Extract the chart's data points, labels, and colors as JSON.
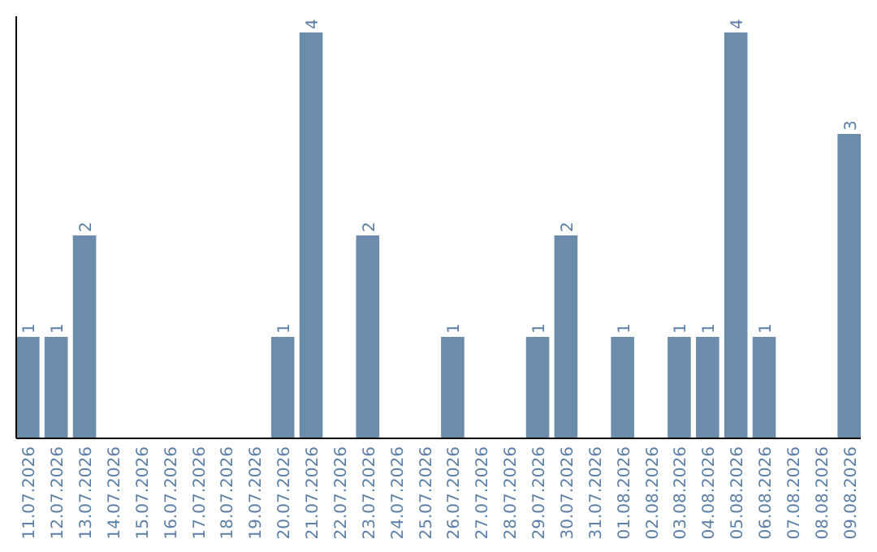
{
  "chart_data": {
    "type": "bar",
    "categories": [
      "11.07.2026",
      "12.07.2026",
      "13.07.2026",
      "14.07.2026",
      "15.07.2026",
      "16.07.2026",
      "17.07.2026",
      "18.07.2026",
      "19.07.2026",
      "20.07.2026",
      "21.07.2026",
      "22.07.2026",
      "23.07.2026",
      "24.07.2026",
      "25.07.2026",
      "26.07.2026",
      "27.07.2026",
      "28.07.2026",
      "29.07.2026",
      "30.07.2026",
      "31.07.2026",
      "01.08.2026",
      "02.08.2026",
      "03.08.2026",
      "04.08.2026",
      "05.08.2026",
      "06.08.2026",
      "07.08.2026",
      "08.08.2026",
      "09.08.2026"
    ],
    "values": [
      1,
      1,
      2,
      0,
      0,
      0,
      0,
      0,
      0,
      1,
      4,
      0,
      2,
      0,
      0,
      1,
      0,
      0,
      1,
      2,
      0,
      1,
      0,
      1,
      1,
      4,
      1,
      0,
      0,
      3
    ],
    "value_labels": [
      "1",
      "1",
      "2",
      null,
      null,
      null,
      null,
      null,
      null,
      "1",
      "4",
      null,
      "2",
      null,
      null,
      "1",
      null,
      null,
      "1",
      "2",
      null,
      "1",
      null,
      "1",
      "1",
      "4",
      "1",
      null,
      null,
      "3"
    ],
    "color": "#6c8cab",
    "ylim": [
      0,
      4.16
    ],
    "tick_labels": "x"
  }
}
